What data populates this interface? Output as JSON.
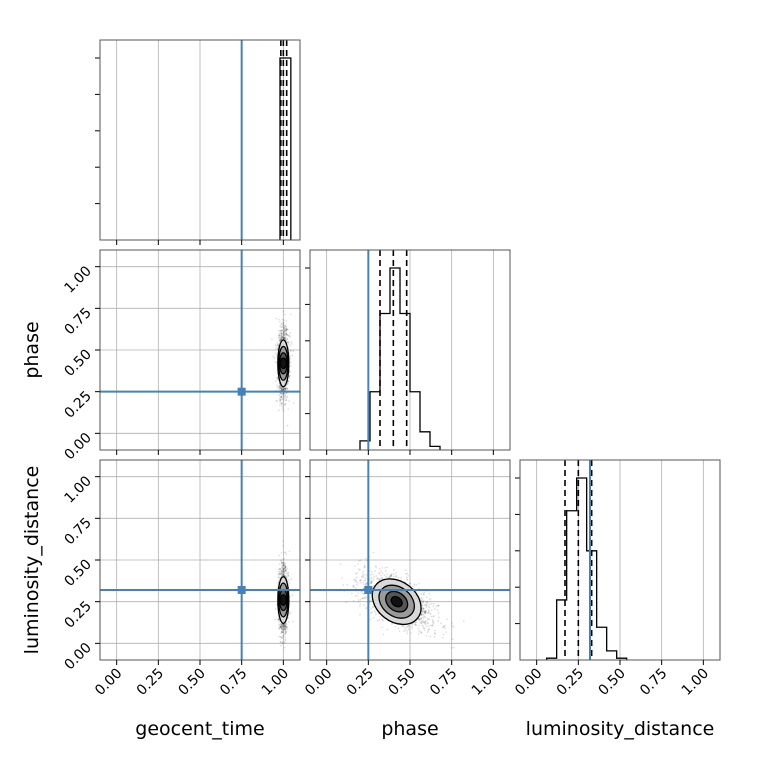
{
  "chart_data": {
    "type": "corner",
    "parameters": [
      "geocent_time",
      "phase",
      "luminosity_distance"
    ],
    "axis_range": [
      -0.1,
      1.1
    ],
    "tick_values": [
      0.0,
      0.25,
      0.5,
      0.75,
      1.0
    ],
    "tick_labels": [
      "0.00",
      "0.25",
      "0.50",
      "0.75",
      "1.00"
    ],
    "grid": true,
    "truth_values": {
      "geocent_time": 0.75,
      "phase": 0.25,
      "luminosity_distance": 0.32
    },
    "truth_color": "#4682b4",
    "marginals": {
      "geocent_time": {
        "bin_edges": [
          0.98,
          1.045
        ],
        "counts": [
          1.0
        ],
        "quantiles": [
          0.985,
          1.0,
          1.02
        ]
      },
      "phase": {
        "bin_edges": [
          0.2,
          0.26,
          0.32,
          0.38,
          0.44,
          0.5,
          0.56,
          0.62,
          0.68
        ],
        "counts": [
          0.05,
          0.32,
          0.75,
          1.0,
          0.75,
          0.32,
          0.1,
          0.02
        ],
        "quantiles": [
          0.32,
          0.4,
          0.48
        ]
      },
      "luminosity_distance": {
        "bin_edges": [
          0.06,
          0.12,
          0.18,
          0.24,
          0.3,
          0.36,
          0.42,
          0.48,
          0.54
        ],
        "counts": [
          0.01,
          0.33,
          0.82,
          1.0,
          0.6,
          0.18,
          0.05,
          0.01
        ],
        "quantiles": [
          0.17,
          0.25,
          0.33
        ]
      }
    },
    "joint": {
      "phase_vs_geocent_time": {
        "x_center": 1.0,
        "y_center": 0.42,
        "x_spread": 0.012,
        "y_spread": 0.07
      },
      "luminosity_distance_vs_geocent_time": {
        "x_center": 1.0,
        "y_center": 0.26,
        "x_spread": 0.01,
        "y_spread": 0.07
      },
      "luminosity_distance_vs_phase": {
        "x_center": 0.42,
        "y_center": 0.25,
        "x_spread": 0.08,
        "y_spread": 0.06,
        "correlation": -0.55
      }
    },
    "colors": {
      "truth": "#4682b4",
      "contour_fill": "#7f7f7f",
      "core": "#111111"
    }
  }
}
